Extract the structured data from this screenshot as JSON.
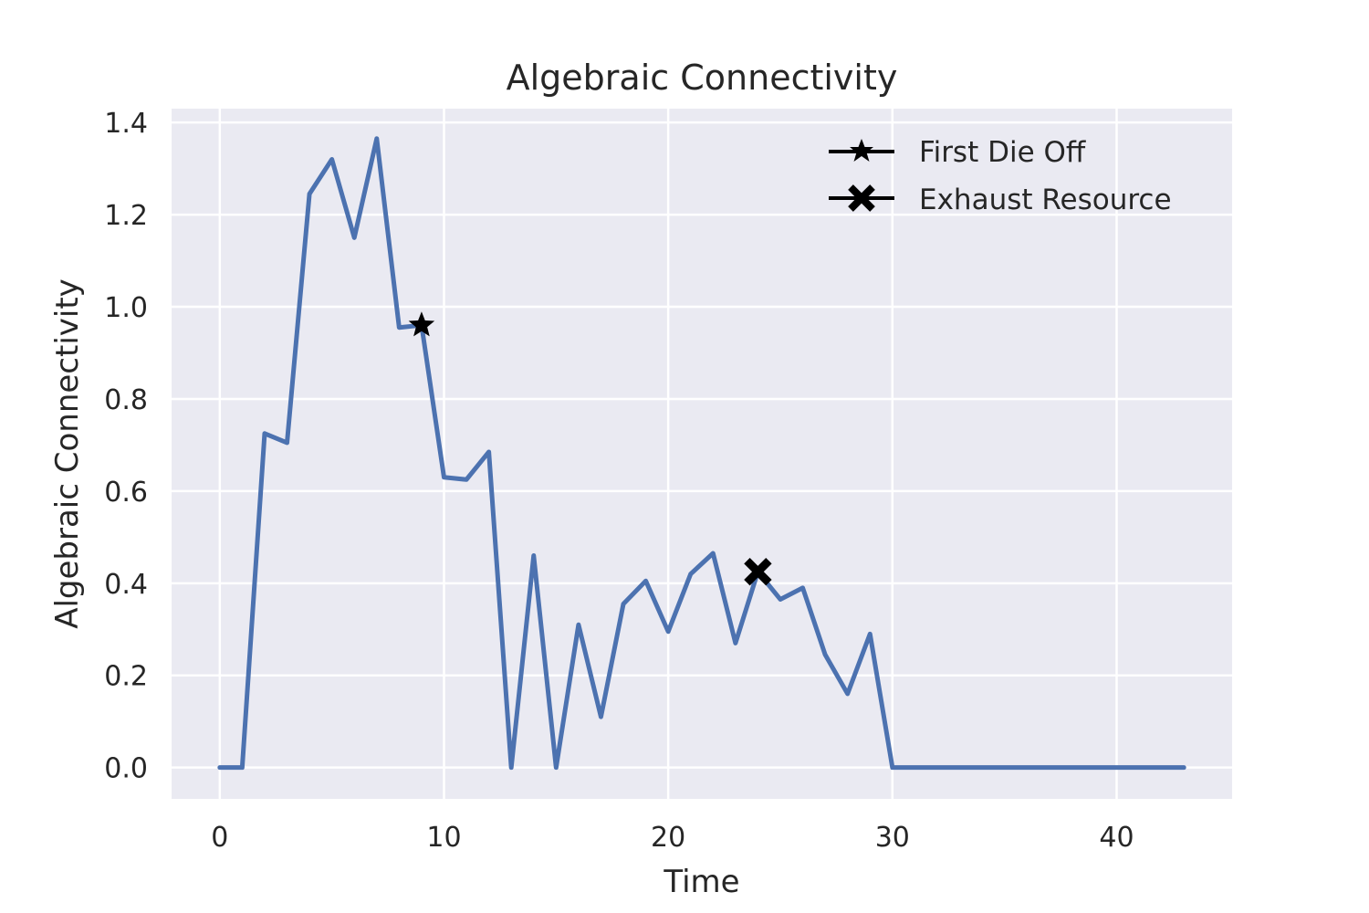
{
  "chart_data": {
    "type": "line",
    "title": "Algebraic Connectivity",
    "xlabel": "Time",
    "ylabel": "Algebraic Connectivity",
    "xlim": [
      -2.15,
      45.15
    ],
    "ylim": [
      -0.068,
      1.43
    ],
    "xticks": [
      0,
      10,
      20,
      30,
      40
    ],
    "yticks": [
      0.0,
      0.2,
      0.4,
      0.6,
      0.8,
      1.0,
      1.2,
      1.4
    ],
    "ytick_labels": [
      "0.0",
      "0.2",
      "0.4",
      "0.6",
      "0.8",
      "1.0",
      "1.2",
      "1.4"
    ],
    "grid": true,
    "legend_position": "top-right",
    "colors": {
      "background": "#eaeaf2",
      "grid": "#ffffff",
      "series": "#4c72b0",
      "marker": "#000000"
    },
    "series": [
      {
        "x": [
          0,
          1,
          2,
          3,
          4,
          5,
          6,
          7,
          8,
          9,
          10,
          11,
          12,
          13,
          14,
          15,
          16,
          17,
          18,
          19,
          20,
          21,
          22,
          23,
          24,
          25,
          26,
          27,
          28,
          29,
          30,
          31,
          32,
          33,
          34,
          35,
          36,
          37,
          38,
          39,
          40,
          41,
          42,
          43
        ],
        "values": [
          0,
          0,
          0.725,
          0.705,
          1.245,
          1.32,
          1.15,
          1.365,
          0.955,
          0.96,
          0.63,
          0.625,
          0.685,
          0,
          0.46,
          0,
          0.31,
          0.11,
          0.355,
          0.405,
          0.295,
          0.42,
          0.465,
          0.27,
          0.425,
          0.365,
          0.39,
          0.245,
          0.16,
          0.29,
          0,
          0,
          0,
          0,
          0,
          0,
          0,
          0,
          0,
          0,
          0,
          0,
          0,
          0
        ]
      }
    ],
    "markers": [
      {
        "name": "First Die Off",
        "symbol": "star",
        "x": 9,
        "y": 0.96
      },
      {
        "name": "Exhaust Resource",
        "symbol": "x",
        "x": 24,
        "y": 0.425
      }
    ]
  }
}
